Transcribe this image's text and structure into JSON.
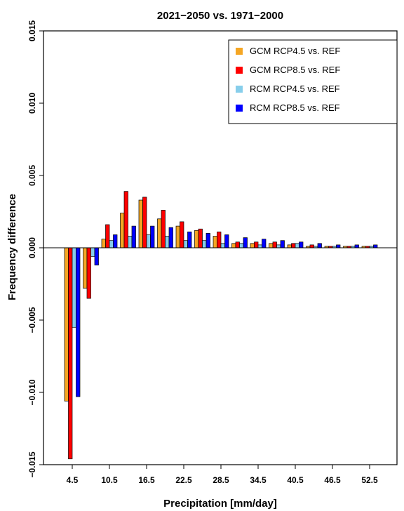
{
  "chart_data": {
    "type": "bar",
    "title": "2021−2050 vs. 1971−2000",
    "xlabel": "Precipitation [mm/day]",
    "ylabel": "Frequency difference",
    "ylim": [
      -0.015,
      0.015
    ],
    "yticks": [
      -0.015,
      -0.01,
      -0.005,
      0.0,
      0.005,
      0.01,
      0.015
    ],
    "ytick_labels": [
      "−0.015",
      "−0.010",
      "−0.005",
      "0.000",
      "0.005",
      "0.010",
      "0.015"
    ],
    "categories": [
      "4.5",
      "7.5",
      "10.5",
      "13.5",
      "16.5",
      "19.5",
      "22.5",
      "25.5",
      "28.5",
      "31.5",
      "34.5",
      "37.5",
      "40.5",
      "43.5",
      "46.5",
      "49.5",
      "52.5"
    ],
    "xtick_labels": [
      "4.5",
      "10.5",
      "16.5",
      "22.5",
      "28.5",
      "34.5",
      "40.5",
      "46.5",
      "52.5"
    ],
    "legend_position": "top-right",
    "series": [
      {
        "name": "GCM RCP4.5 vs. REF",
        "color": "#f5a623",
        "values": [
          -0.0106,
          -0.0028,
          0.0006,
          0.0024,
          0.0033,
          0.002,
          0.0015,
          0.0012,
          0.0008,
          0.0003,
          0.0003,
          0.0003,
          0.0002,
          0.0001,
          0.0001,
          0.0001,
          0.0001
        ]
      },
      {
        "name": "GCM RCP8.5 vs. REF",
        "color": "#ff0000",
        "values": [
          -0.0146,
          -0.0035,
          0.0016,
          0.0039,
          0.0035,
          0.0026,
          0.0018,
          0.0013,
          0.0011,
          0.0004,
          0.0004,
          0.0004,
          0.0003,
          0.0002,
          0.0001,
          0.0001,
          0.0001
        ]
      },
      {
        "name": "RCM RCP4.5 vs. REF",
        "color": "#87ceeb",
        "values": [
          -0.0055,
          -0.0006,
          0.0005,
          0.0008,
          0.0009,
          0.0008,
          0.0005,
          0.0005,
          0.0003,
          0.0003,
          0.0002,
          0.0002,
          0.0003,
          0.0001,
          0.0001,
          0.0001,
          0.0001
        ]
      },
      {
        "name": "RCM RCP8.5 vs. REF",
        "color": "#0000ff",
        "values": [
          -0.0103,
          -0.0012,
          0.0009,
          0.0015,
          0.0015,
          0.0014,
          0.0011,
          0.001,
          0.0009,
          0.0007,
          0.0006,
          0.0005,
          0.0004,
          0.0003,
          0.0002,
          0.0002,
          0.0002
        ]
      }
    ]
  }
}
